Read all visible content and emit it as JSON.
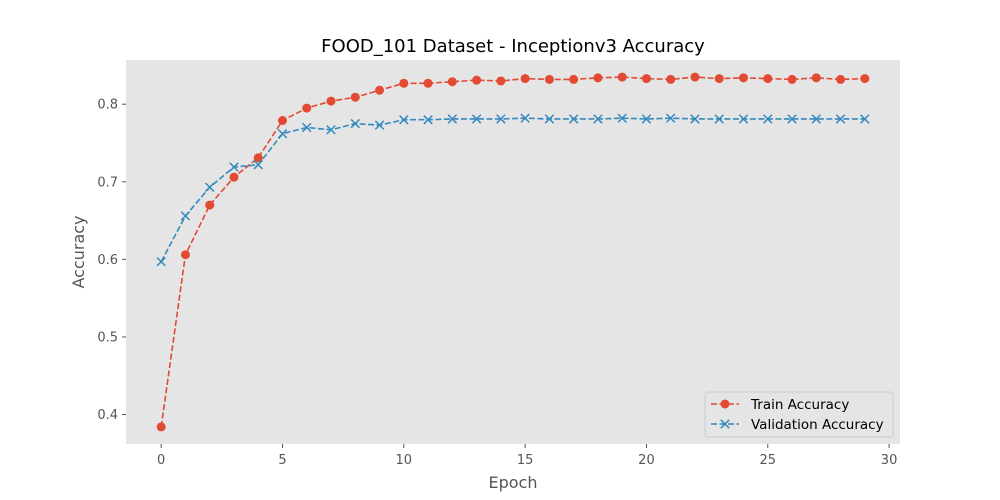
{
  "chart_data": {
    "type": "line",
    "title": "FOOD_101 Dataset - Inceptionv3 Accuracy",
    "xlabel": "Epoch",
    "ylabel": "Accuracy",
    "xlim": [
      -1.45,
      30.45
    ],
    "ylim": [
      0.362,
      0.857
    ],
    "x_ticks": [
      0,
      5,
      10,
      15,
      20,
      25,
      30
    ],
    "y_ticks": [
      0.4,
      0.5,
      0.6,
      0.7,
      0.8
    ],
    "y_tick_labels": [
      "0.4",
      "0.5",
      "0.6",
      "0.7",
      "0.8"
    ],
    "grid": false,
    "legend_position": "bottom-right",
    "x": [
      0,
      1,
      2,
      3,
      4,
      5,
      6,
      7,
      8,
      9,
      10,
      11,
      12,
      13,
      14,
      15,
      16,
      17,
      18,
      19,
      20,
      21,
      22,
      23,
      24,
      25,
      26,
      27,
      28,
      29
    ],
    "series": [
      {
        "name": "Train Accuracy",
        "color": "#e24a33",
        "marker": "circle",
        "linestyle": "dashed",
        "values": [
          0.384,
          0.606,
          0.67,
          0.706,
          0.731,
          0.779,
          0.795,
          0.804,
          0.809,
          0.818,
          0.827,
          0.827,
          0.829,
          0.831,
          0.83,
          0.833,
          0.832,
          0.832,
          0.834,
          0.835,
          0.833,
          0.832,
          0.835,
          0.833,
          0.834,
          0.833,
          0.832,
          0.834,
          0.832,
          0.833
        ]
      },
      {
        "name": "Validation Accuracy",
        "color": "#348abd",
        "marker": "x",
        "linestyle": "dashed",
        "values": [
          0.597,
          0.656,
          0.693,
          0.719,
          0.722,
          0.762,
          0.77,
          0.767,
          0.775,
          0.773,
          0.78,
          0.78,
          0.781,
          0.781,
          0.781,
          0.782,
          0.781,
          0.781,
          0.781,
          0.782,
          0.781,
          0.782,
          0.781,
          0.781,
          0.781,
          0.781,
          0.781,
          0.781,
          0.781,
          0.781
        ]
      }
    ]
  },
  "style": {
    "plot_background": "#e5e5e5",
    "page_background": "#ffffff",
    "tick_color": "#555555"
  }
}
